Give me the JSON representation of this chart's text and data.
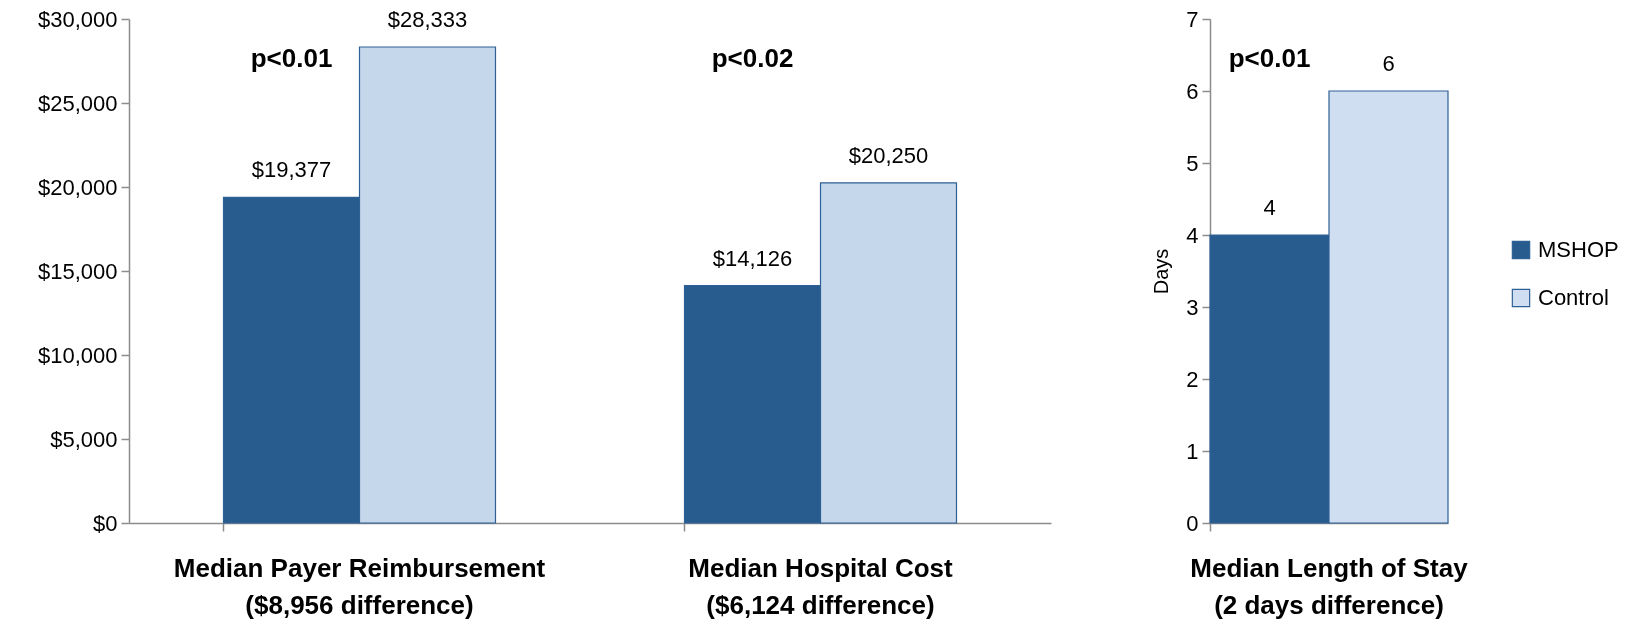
{
  "chart_data": [
    {
      "type": "bar",
      "categories": [
        "Median Payer Reimbursement\n($8,956 difference)",
        "Median Hospital Cost\n($6,124 difference)"
      ],
      "series": [
        {
          "color": "#285c8f",
          "values": [
            19377,
            14126
          ],
          "value_labels": [
            "$19,377",
            "$14,126"
          ]
        },
        {
          "color": "#c5d7eb",
          "values": [
            28333,
            20250
          ],
          "value_labels": [
            "$28,333",
            "$20,250"
          ]
        }
      ],
      "ylim": [
        0,
        30000
      ],
      "yticks": [
        {
          "value": 0,
          "label": "$0"
        },
        {
          "value": 5000,
          "label": "$5,000"
        },
        {
          "value": 10000,
          "label": "$10,000"
        },
        {
          "value": 15000,
          "label": "$15,000"
        },
        {
          "value": 20000,
          "label": "$20,000"
        },
        {
          "value": 25000,
          "label": "$25,000"
        },
        {
          "value": 30000,
          "label": "$30,000"
        }
      ],
      "annotations": [
        "p<0.01",
        "p<0.02"
      ]
    },
    {
      "type": "bar",
      "categories": [
        "Median Length of Stay\n(2 days difference)"
      ],
      "series": [
        {
          "name": "MSHOP",
          "color": "#285c8f",
          "values": [
            4
          ]
        },
        {
          "name": "Control",
          "color": "#cfdff1",
          "values": [
            6
          ]
        }
      ],
      "ylabel": "Days",
      "ylim": [
        0,
        7
      ],
      "yticks": [
        0,
        1,
        2,
        3,
        4,
        5,
        6,
        7
      ],
      "data_labels": true,
      "legend": "right",
      "annotations": [
        "p<0.01"
      ]
    }
  ]
}
